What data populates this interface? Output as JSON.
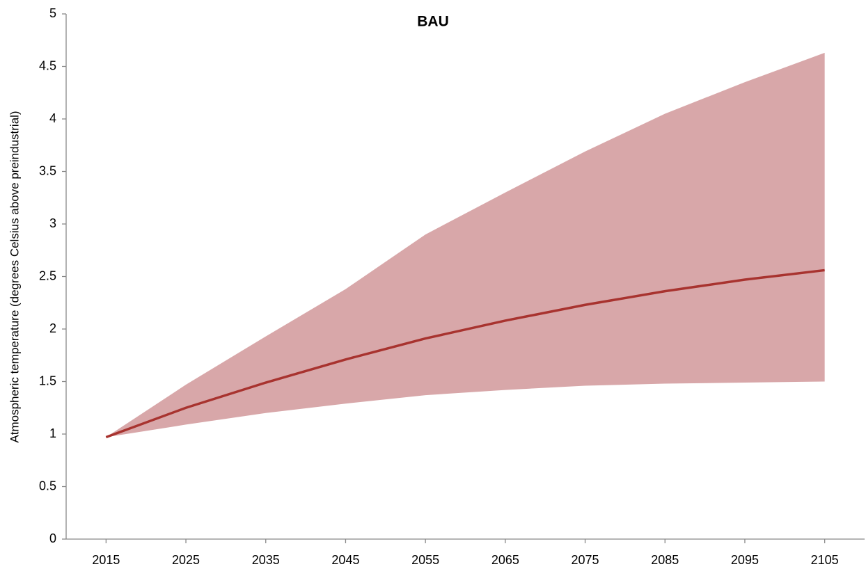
{
  "chart_data": {
    "type": "line",
    "title": "BAU",
    "y_label": "Atmospheric temperature (degrees Celsius above preindustrial)",
    "x": [
      2015,
      2025,
      2035,
      2045,
      2055,
      2065,
      2075,
      2085,
      2095,
      2105
    ],
    "xlim": [
      2010,
      2110
    ],
    "xticks": [
      2015,
      2025,
      2035,
      2045,
      2055,
      2065,
      2075,
      2085,
      2095,
      2105
    ],
    "ylim": [
      0,
      5
    ],
    "yticks": [
      0,
      0.5,
      1,
      1.5,
      2,
      2.5,
      3,
      3.5,
      4,
      4.5,
      5
    ],
    "band": {
      "color": "#d8a7a9",
      "upper": [
        0.97,
        1.47,
        1.93,
        2.38,
        2.9,
        3.3,
        3.69,
        4.05,
        4.35,
        4.63
      ],
      "lower": [
        0.97,
        1.09,
        1.2,
        1.29,
        1.37,
        1.42,
        1.46,
        1.48,
        1.49,
        1.5
      ]
    },
    "series": [
      {
        "color": "#a8332f",
        "values": [
          0.97,
          1.25,
          1.49,
          1.71,
          1.91,
          2.08,
          2.23,
          2.36,
          2.47,
          2.56
        ]
      }
    ],
    "grid": false
  }
}
